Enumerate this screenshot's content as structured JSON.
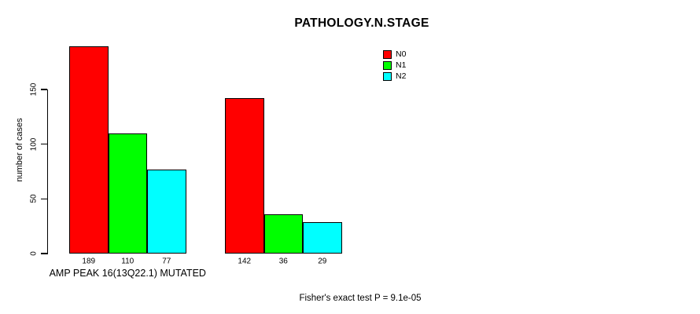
{
  "title": "PATHOLOGY.N.STAGE",
  "y_axis": {
    "label": "number of cases",
    "tick_labels": [
      "0",
      "50",
      "100",
      "150"
    ]
  },
  "x_axis": {
    "group_labels": [
      "AMP PEAK 16(13Q22.1) MUTATED",
      ""
    ]
  },
  "annotation": "Fisher's exact test P = 9.1e-05",
  "legend": {
    "items": [
      {
        "label": "N0",
        "color": "#ff0000"
      },
      {
        "label": "N1",
        "color": "#00ff00"
      },
      {
        "label": "N2",
        "color": "#00ffff"
      }
    ]
  },
  "chart_data": {
    "type": "bar",
    "title": "PATHOLOGY.N.STAGE",
    "ylabel": "number of cases",
    "xlabel": "",
    "categories": [
      "AMP PEAK 16(13Q22.1) MUTATED",
      ""
    ],
    "series": [
      {
        "name": "N0",
        "color": "#ff0000",
        "values": [
          189,
          142
        ]
      },
      {
        "name": "N1",
        "color": "#00ff00",
        "values": [
          110,
          36
        ]
      },
      {
        "name": "N2",
        "color": "#00ffff",
        "values": [
          77,
          29
        ]
      }
    ],
    "bar_value_labels": [
      [
        189,
        110,
        77
      ],
      [
        142,
        36,
        29
      ]
    ],
    "yticks": [
      0,
      50,
      100,
      150
    ],
    "ylim": [
      0,
      195
    ],
    "grid": false,
    "legend_position": "top-right",
    "annotation": "Fisher's exact test P = 9.1e-05"
  }
}
